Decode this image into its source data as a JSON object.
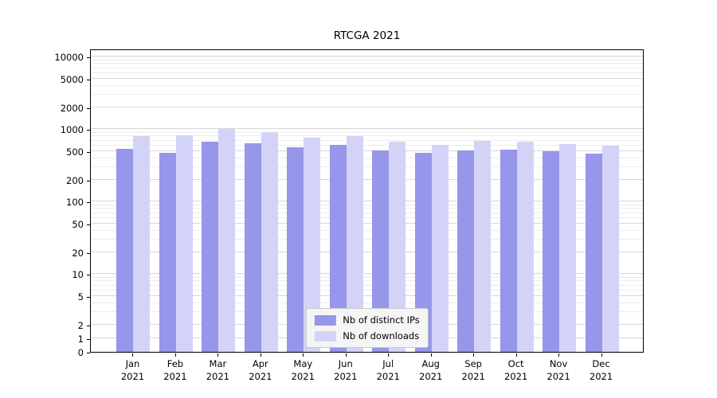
{
  "chart_data": {
    "type": "bar",
    "title": "RTCGA 2021",
    "categories": [
      "Jan",
      "Feb",
      "Mar",
      "Apr",
      "May",
      "Jun",
      "Jul",
      "Aug",
      "Sep",
      "Oct",
      "Nov",
      "Dec"
    ],
    "year_label": "2021",
    "series": [
      {
        "name": "Nb of distinct IPs",
        "color": "#9696ea",
        "values": [
          540,
          470,
          680,
          640,
          560,
          610,
          510,
          470,
          510,
          520,
          500,
          460
        ]
      },
      {
        "name": "Nb of downloads",
        "color": "#d3d3f8",
        "values": [
          810,
          830,
          1010,
          920,
          760,
          810,
          670,
          610,
          700,
          680,
          630,
          600
        ]
      }
    ],
    "yscale": "symlog",
    "yticks": [
      10000,
      5000,
      2000,
      1000,
      500,
      200,
      100,
      50,
      20,
      10,
      5,
      2,
      1,
      0
    ],
    "ylim": [
      0,
      13000
    ],
    "grid": "both",
    "legend_position": "lower center"
  }
}
